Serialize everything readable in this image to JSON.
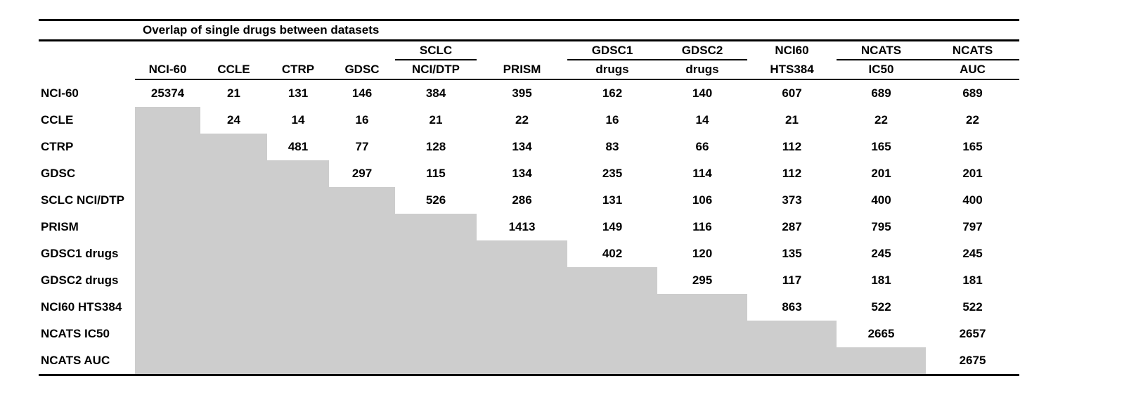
{
  "title": "Overlap of single drugs between datasets",
  "colors": {
    "background": "#ffffff",
    "rule": "#000000",
    "text": "#000000",
    "shaded_cell": "#cdcdcd"
  },
  "table": {
    "columns": [
      {
        "top": "",
        "bottom": "NCI-60",
        "group_underline": false
      },
      {
        "top": "",
        "bottom": "CCLE",
        "group_underline": false
      },
      {
        "top": "",
        "bottom": "CTRP",
        "group_underline": false
      },
      {
        "top": "",
        "bottom": "GDSC",
        "group_underline": false
      },
      {
        "top": "SCLC",
        "bottom": "NCI/DTP",
        "group_underline": true
      },
      {
        "top": "",
        "bottom": "PRISM",
        "group_underline": false
      },
      {
        "top": "GDSC1",
        "bottom": "drugs",
        "group_underline": true
      },
      {
        "top": "GDSC2",
        "bottom": "drugs",
        "group_underline": true
      },
      {
        "top": "NCI60",
        "bottom": "HTS384",
        "group_underline": false
      },
      {
        "top": "NCATS",
        "bottom": "IC50",
        "group_underline": true
      },
      {
        "top": "NCATS",
        "bottom": "AUC",
        "group_underline": true
      }
    ],
    "rows": [
      {
        "label": "NCI-60",
        "values": [
          25374,
          21,
          131,
          146,
          384,
          395,
          162,
          140,
          607,
          689,
          689
        ]
      },
      {
        "label": "CCLE",
        "values": [
          null,
          24,
          14,
          16,
          21,
          22,
          16,
          14,
          21,
          22,
          22
        ]
      },
      {
        "label": "CTRP",
        "values": [
          null,
          null,
          481,
          77,
          128,
          134,
          83,
          66,
          112,
          165,
          165
        ]
      },
      {
        "label": "GDSC",
        "values": [
          null,
          null,
          null,
          297,
          115,
          134,
          235,
          114,
          112,
          201,
          201
        ]
      },
      {
        "label": "SCLC NCI/DTP",
        "values": [
          null,
          null,
          null,
          null,
          526,
          286,
          131,
          106,
          373,
          400,
          400
        ]
      },
      {
        "label": "PRISM",
        "values": [
          null,
          null,
          null,
          null,
          null,
          1413,
          149,
          116,
          287,
          795,
          797
        ]
      },
      {
        "label": "GDSC1 drugs",
        "values": [
          null,
          null,
          null,
          null,
          null,
          null,
          402,
          120,
          135,
          245,
          245
        ]
      },
      {
        "label": "GDSC2 drugs",
        "values": [
          null,
          null,
          null,
          null,
          null,
          null,
          null,
          295,
          117,
          181,
          181
        ]
      },
      {
        "label": "NCI60 HTS384",
        "values": [
          null,
          null,
          null,
          null,
          null,
          null,
          null,
          null,
          863,
          522,
          522
        ]
      },
      {
        "label": "NCATS IC50",
        "values": [
          null,
          null,
          null,
          null,
          null,
          null,
          null,
          null,
          null,
          2665,
          2657
        ]
      },
      {
        "label": "NCATS AUC",
        "values": [
          null,
          null,
          null,
          null,
          null,
          null,
          null,
          null,
          null,
          null,
          2675
        ]
      }
    ]
  }
}
